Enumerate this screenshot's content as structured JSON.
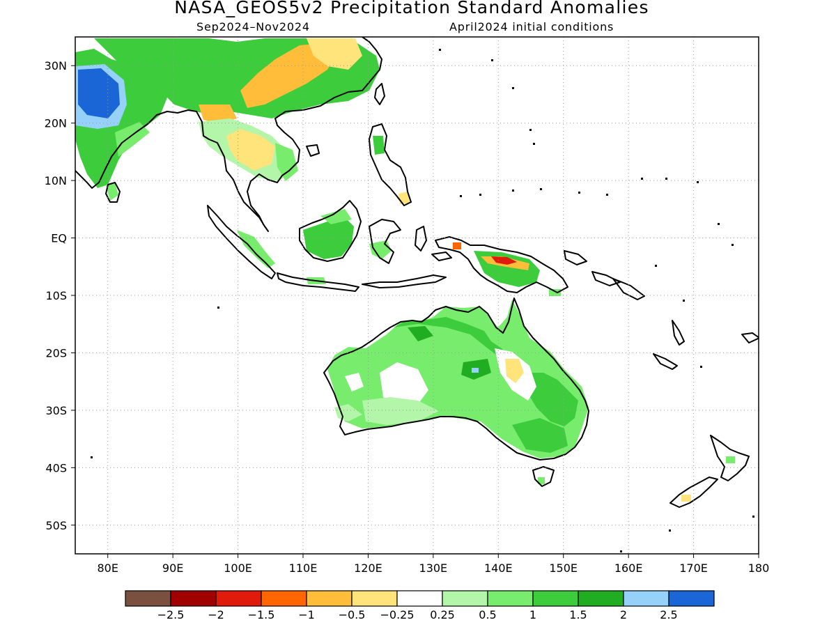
{
  "header": {
    "title": "NASA_GEOS5v2 Precipitation Standard Anomalies",
    "period": "Sep2024–Nov2024",
    "init": "April2024 initial conditions"
  },
  "map": {
    "lon_range": [
      75,
      180
    ],
    "lat_range": [
      -55,
      35
    ],
    "grid": "dotted",
    "lat_ticks": [
      {
        "value": 30,
        "label": "30N"
      },
      {
        "value": 20,
        "label": "20N"
      },
      {
        "value": 10,
        "label": "10N"
      },
      {
        "value": 0,
        "label": "EQ"
      },
      {
        "value": -10,
        "label": "10S"
      },
      {
        "value": -20,
        "label": "20S"
      },
      {
        "value": -30,
        "label": "30S"
      },
      {
        "value": -40,
        "label": "40S"
      },
      {
        "value": -50,
        "label": "50S"
      }
    ],
    "lon_ticks": [
      {
        "value": 80,
        "label": "80E"
      },
      {
        "value": 90,
        "label": "90E"
      },
      {
        "value": 100,
        "label": "100E"
      },
      {
        "value": 110,
        "label": "110E"
      },
      {
        "value": 120,
        "label": "120E"
      },
      {
        "value": 130,
        "label": "130E"
      },
      {
        "value": 140,
        "label": "140E"
      },
      {
        "value": 150,
        "label": "150E"
      },
      {
        "value": 160,
        "label": "160E"
      },
      {
        "value": 170,
        "label": "170E"
      },
      {
        "value": 180,
        "label": "180"
      }
    ]
  },
  "colorbar": {
    "colors": [
      "#7a5040",
      "#a00000",
      "#e01b0c",
      "#ff6600",
      "#ffbd3a",
      "#ffe37b",
      "#ffffff",
      "#b3f5a9",
      "#78ec6d",
      "#3ccc3c",
      "#21ad21",
      "#96d1fa",
      "#1a66d6"
    ],
    "labels": [
      "-2.5",
      "-2",
      "-1.5",
      "-1",
      "-0.5",
      "-0.25",
      "0.25",
      "0.5",
      "1",
      "1.5",
      "2",
      "2.5"
    ]
  }
}
